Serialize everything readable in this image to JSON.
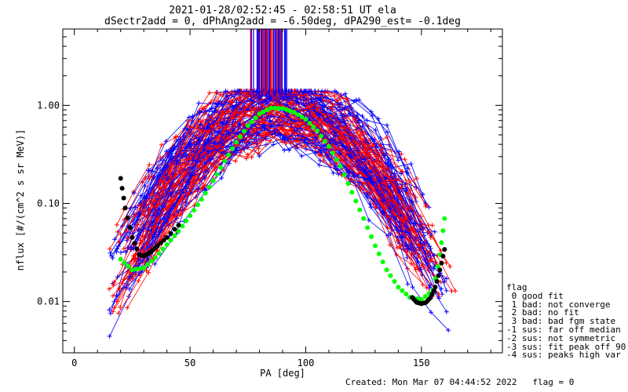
{
  "header": {
    "title_line1": "2021-01-28/02:52:45 - 02:58:51 UT ela",
    "title_line2": "dSectr2add = 0, dPhAng2add = -6.50deg, dPA290_est=  -0.1deg"
  },
  "footer": {
    "created": "Created: Mon Mar 07 04:44:52 2022",
    "flag": "flag = 0"
  },
  "legend": {
    "title": "flag",
    "entries": [
      " 0 good fit",
      " 1 bad: not converge",
      " 2 bad: no fit",
      " 3 bad: bad fgm state",
      "-1 sus: far off median",
      "-2 sus: not symmetric",
      "-3 sus: fit peak off 90",
      "-4 sus: peaks high var"
    ]
  },
  "chart_data": {
    "type": "line",
    "xlabel": "PA [deg]",
    "ylabel": "nflux [#/(cm^2 s sr MeV)]",
    "xlim": [
      -5,
      185
    ],
    "ylim": [
      0.003,
      6
    ],
    "ylog": true,
    "x_ticks": [
      0,
      50,
      100,
      150
    ],
    "y_ticks": [
      {
        "value": 0.01,
        "label": "0.01"
      },
      {
        "value": 0.1,
        "label": "0.10"
      },
      {
        "value": 1.0,
        "label": "1.00"
      }
    ],
    "series": [
      {
        "color": "#00ff00",
        "marker": "filled-circle",
        "x": [
          20,
          25,
          30,
          35,
          40,
          45,
          50,
          55,
          60,
          65,
          70,
          75,
          80,
          85,
          90,
          95,
          100,
          105,
          110,
          115,
          120,
          125,
          130,
          135,
          140,
          145,
          150,
          155,
          158,
          160
        ],
        "y": [
          0.027,
          0.021,
          0.022,
          0.028,
          0.038,
          0.052,
          0.075,
          0.11,
          0.17,
          0.27,
          0.42,
          0.62,
          0.82,
          0.94,
          0.93,
          0.85,
          0.72,
          0.55,
          0.38,
          0.24,
          0.13,
          0.07,
          0.037,
          0.021,
          0.014,
          0.011,
          0.0105,
          0.013,
          0.03,
          0.07
        ]
      },
      {
        "color": "#000000",
        "marker": "filled-circle",
        "x": [
          20,
          22,
          25,
          28,
          30,
          33,
          36,
          40,
          45
        ],
        "y": [
          0.18,
          0.09,
          0.045,
          0.03,
          0.029,
          0.032,
          0.037,
          0.045,
          0.06
        ]
      },
      {
        "color": "#000000",
        "marker": "filled-circle",
        "x": [
          146,
          148,
          150,
          152,
          154,
          156,
          158,
          160
        ],
        "y": [
          0.011,
          0.0098,
          0.0095,
          0.0098,
          0.011,
          0.014,
          0.021,
          0.034
        ]
      }
    ]
  }
}
